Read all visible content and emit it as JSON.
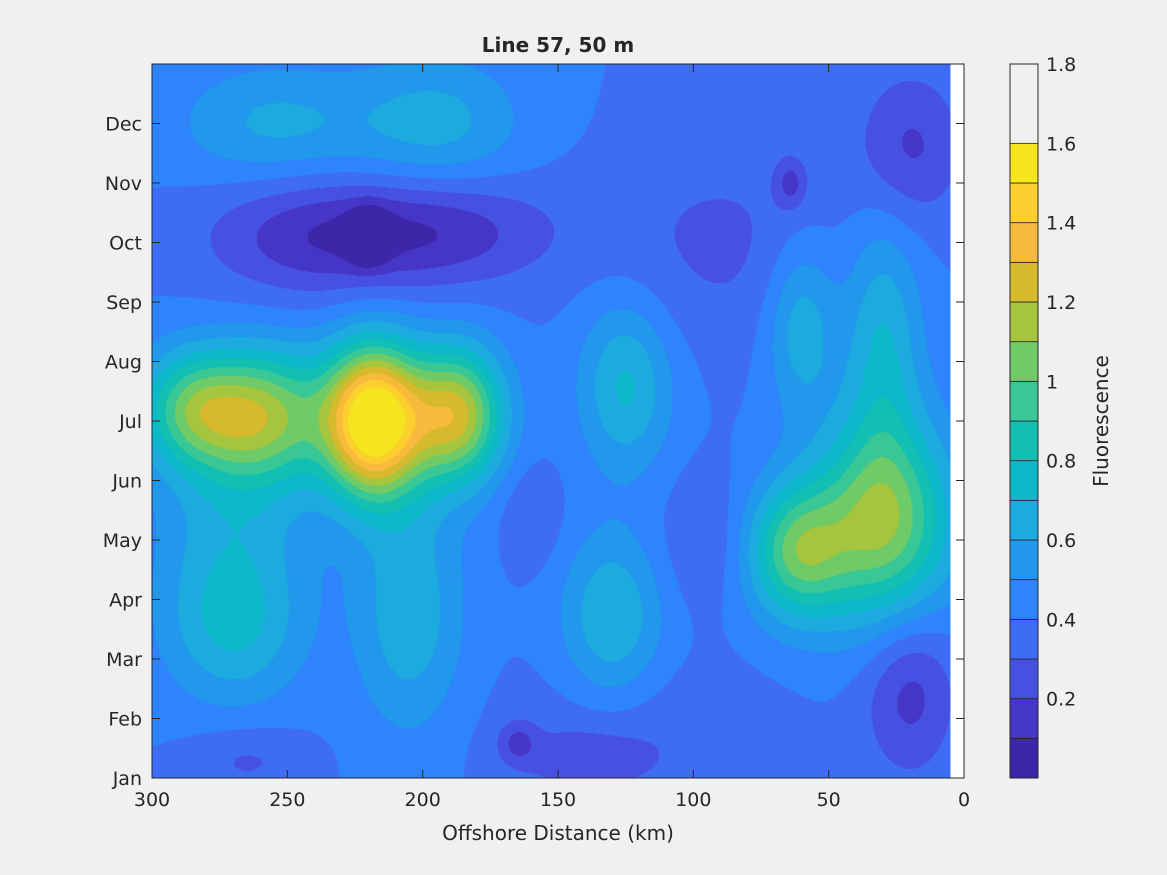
{
  "chart_data": {
    "type": "heatmap",
    "subtype": "filled-contour",
    "title": "Line 57, 50 m",
    "xlabel": "Offshore Distance (km)",
    "ylabel": "",
    "x_reversed": true,
    "xlim": [
      300,
      0
    ],
    "xticks": [
      300,
      250,
      200,
      150,
      100,
      50,
      0
    ],
    "xtick_labels": [
      "300",
      "250",
      "200",
      "150",
      "100",
      "50",
      "0"
    ],
    "ylim": [
      0,
      12
    ],
    "yticks": [
      0,
      1,
      2,
      3,
      4,
      5,
      6,
      7,
      8,
      9,
      10,
      11
    ],
    "ytick_labels": [
      "Jan",
      "Feb",
      "Mar",
      "Apr",
      "May",
      "Jun",
      "Jul",
      "Aug",
      "Sep",
      "Oct",
      "Nov",
      "Dec"
    ],
    "data_xmin_km": 5,
    "colorbar": {
      "label": "Fluorescence",
      "range": [
        0.0,
        1.8
      ],
      "ticks": [
        0.2,
        0.4,
        0.6,
        0.8,
        1.0,
        1.2,
        1.4,
        1.6,
        1.8
      ],
      "tick_labels": [
        "0.2",
        "0.4",
        "0.6",
        "0.8",
        "1",
        "1.2",
        "1.4",
        "1.6",
        "1.8"
      ],
      "level_step": 0.1,
      "colors": [
        "#3e26a8",
        "#4536c7",
        "#4651e2",
        "#3f6cf5",
        "#2e84fb",
        "#2198eb",
        "#1caadf",
        "#0db8cb",
        "#12bfb2",
        "#38c795",
        "#6ecb68",
        "#a5c53e",
        "#d6b92c",
        "#f8ba3c",
        "#fcce2e",
        "#f4e51f"
      ]
    },
    "background": 0.4,
    "features": [
      {
        "x": 218,
        "y": 6.0,
        "value": 1.68,
        "sx": 13,
        "sy": 0.9
      },
      {
        "x": 187,
        "y": 6.1,
        "value": 1.2,
        "sx": 12,
        "sy": 0.8
      },
      {
        "x": 258,
        "y": 6.1,
        "value": 1.05,
        "sx": 16,
        "sy": 0.8
      },
      {
        "x": 285,
        "y": 6.2,
        "value": 0.95,
        "sx": 14,
        "sy": 0.7
      },
      {
        "x": 30,
        "y": 4.3,
        "value": 1.1,
        "sx": 18,
        "sy": 1.2
      },
      {
        "x": 62,
        "y": 3.8,
        "value": 0.97,
        "sx": 13,
        "sy": 0.8
      },
      {
        "x": 125,
        "y": 6.6,
        "value": 0.72,
        "sx": 12,
        "sy": 1.0
      },
      {
        "x": 205,
        "y": 2.8,
        "value": 0.68,
        "sx": 14,
        "sy": 1.4
      },
      {
        "x": 130,
        "y": 2.7,
        "value": 0.7,
        "sx": 13,
        "sy": 1.0
      },
      {
        "x": 270,
        "y": 2.5,
        "value": 0.68,
        "sx": 18,
        "sy": 0.9
      },
      {
        "x": 270,
        "y": 4.3,
        "value": 0.62,
        "sx": 20,
        "sy": 1.2
      },
      {
        "x": 30,
        "y": 7.3,
        "value": 0.7,
        "sx": 10,
        "sy": 1.5
      },
      {
        "x": 60,
        "y": 7.6,
        "value": 0.68,
        "sx": 9,
        "sy": 1.0
      },
      {
        "x": 255,
        "y": 11.0,
        "value": 0.62,
        "sx": 25,
        "sy": 0.7
      },
      {
        "x": 195,
        "y": 11.0,
        "value": 0.64,
        "sx": 22,
        "sy": 0.8
      },
      {
        "x": 240,
        "y": 9.1,
        "value": 0.14,
        "sx": 28,
        "sy": 0.7
      },
      {
        "x": 192,
        "y": 9.2,
        "value": 0.15,
        "sx": 28,
        "sy": 0.65
      },
      {
        "x": 220,
        "y": 9.1,
        "value": 0.05,
        "sx": 5,
        "sy": 0.3
      },
      {
        "x": 90,
        "y": 9.0,
        "value": 0.28,
        "sx": 30,
        "sy": 1.2
      },
      {
        "x": 20,
        "y": 10.6,
        "value": 0.18,
        "sx": 14,
        "sy": 0.9
      },
      {
        "x": 64,
        "y": 10.0,
        "value": 0.2,
        "sx": 4,
        "sy": 0.3
      },
      {
        "x": 20,
        "y": 1.5,
        "value": 0.15,
        "sx": 12,
        "sy": 1.0
      },
      {
        "x": 160,
        "y": 4.4,
        "value": 0.3,
        "sx": 8,
        "sy": 0.6
      },
      {
        "x": 95,
        "y": 4.0,
        "value": 0.3,
        "sx": 12,
        "sy": 0.8
      },
      {
        "x": 265,
        "y": 0.3,
        "value": 0.28,
        "sx": 15,
        "sy": 0.4
      },
      {
        "x": 140,
        "y": 0.3,
        "value": 0.27,
        "sx": 18,
        "sy": 0.4
      },
      {
        "x": 165,
        "y": 0.6,
        "value": 0.22,
        "sx": 5,
        "sy": 0.25
      },
      {
        "x": 120,
        "y": 0.8,
        "value": 0.32,
        "sx": 35,
        "sy": 0.8
      }
    ]
  }
}
